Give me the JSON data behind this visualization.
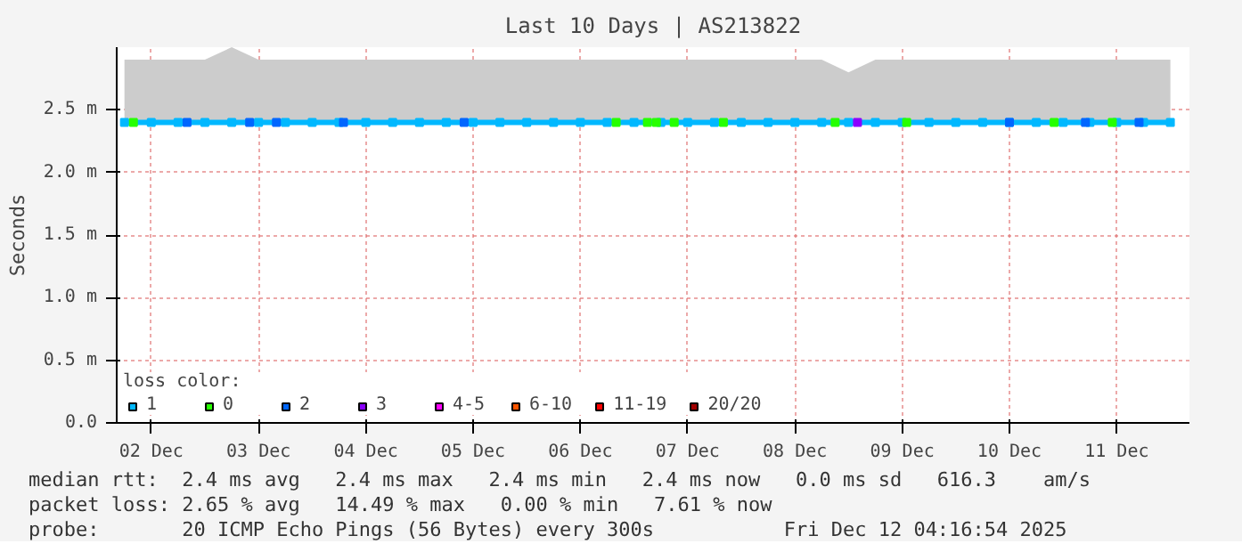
{
  "chart_data": {
    "type": "line",
    "title": "Last 10 Days | AS213822",
    "ylabel": "Seconds",
    "series": [
      {
        "name": "1",
        "color": "#00b8ff",
        "x": [
          "2025-12-02T06:00",
          "2025-12-02T12:00",
          "2025-12-02T18:00",
          "2025-12-03T00:00",
          "2025-12-03T06:00",
          "2025-12-03T12:00",
          "2025-12-03T18:00",
          "2025-12-04T00:00",
          "2025-12-04T06:00",
          "2025-12-04T12:00",
          "2025-12-04T18:00",
          "2025-12-05T00:00",
          "2025-12-05T06:00",
          "2025-12-05T12:00",
          "2025-12-05T18:00",
          "2025-12-06T00:00",
          "2025-12-06T06:00",
          "2025-12-06T12:00",
          "2025-12-06T18:00",
          "2025-12-07T00:00",
          "2025-12-07T06:00",
          "2025-12-07T12:00",
          "2025-12-07T18:00",
          "2025-12-08T00:00",
          "2025-12-08T06:00",
          "2025-12-08T12:00",
          "2025-12-08T18:00",
          "2025-12-09T00:00",
          "2025-12-09T06:00",
          "2025-12-09T12:00",
          "2025-12-09T18:00",
          "2025-12-10T00:00",
          "2025-12-10T06:00",
          "2025-12-10T12:00",
          "2025-12-10T18:00",
          "2025-12-11T00:00",
          "2025-12-11T06:00",
          "2025-12-11T12:00",
          "2025-12-11T18:00",
          "2025-12-12T00:00"
        ],
        "values": [
          2.4,
          2.4,
          2.4,
          2.4,
          2.4,
          2.4,
          2.4,
          2.4,
          2.4,
          2.4,
          2.4,
          2.4,
          2.4,
          2.4,
          2.4,
          2.4,
          2.4,
          2.4,
          2.4,
          2.4,
          2.4,
          2.4,
          2.4,
          2.4,
          2.4,
          2.4,
          2.4,
          2.4,
          2.4,
          2.4,
          2.4,
          2.4,
          2.4,
          2.4,
          2.4,
          2.4,
          2.4,
          2.4,
          2.4,
          2.4
        ],
        "lower": [
          2.4,
          2.4,
          2.4,
          2.4,
          2.4,
          2.4,
          2.4,
          2.4,
          2.4,
          2.4,
          2.4,
          2.4,
          2.4,
          2.4,
          2.4,
          2.4,
          2.4,
          2.4,
          2.4,
          2.4,
          2.4,
          2.4,
          2.4,
          2.4,
          2.4,
          2.4,
          2.4,
          2.4,
          2.4,
          2.4,
          2.4,
          2.4,
          2.4,
          2.4,
          2.4,
          2.4,
          2.4,
          2.4,
          2.4,
          2.4
        ],
        "upper": [
          2.9,
          2.9,
          2.9,
          2.9,
          3.0,
          2.9,
          2.9,
          2.9,
          2.9,
          2.9,
          2.9,
          2.9,
          2.9,
          2.9,
          2.9,
          2.9,
          2.9,
          2.9,
          2.9,
          2.9,
          2.9,
          2.9,
          2.9,
          2.9,
          2.9,
          2.9,
          2.9,
          2.8,
          2.9,
          2.9,
          2.9,
          2.9,
          2.9,
          2.9,
          2.9,
          2.9,
          2.9,
          2.9,
          2.9,
          2.9
        ]
      },
      {
        "name": "0",
        "type": "scatter",
        "color": "#26ff00",
        "x": [
          "2025-12-02T08:00",
          "2025-12-06T20:00",
          "2025-12-07T03:00",
          "2025-12-07T05:00",
          "2025-12-07T09:00",
          "2025-12-07T20:00",
          "2025-12-08T21:00",
          "2025-12-09T13:00",
          "2025-12-10T22:00",
          "2025-12-11T11:00"
        ],
        "values": [
          2.4,
          2.4,
          2.4,
          2.4,
          2.4,
          2.4,
          2.4,
          2.4,
          2.4,
          2.4
        ]
      },
      {
        "name": "2",
        "type": "scatter",
        "color": "#0066ff",
        "x": [
          "2025-12-02T20:00",
          "2025-12-03T10:00",
          "2025-12-03T16:00",
          "2025-12-04T07:00",
          "2025-12-05T10:00",
          "2025-12-10T12:00",
          "2025-12-11T05:00",
          "2025-12-11T17:00"
        ],
        "values": [
          2.4,
          2.4,
          2.4,
          2.4,
          2.4,
          2.4,
          2.4,
          2.4
        ]
      },
      {
        "name": "3",
        "type": "scatter",
        "color": "#8a00ff",
        "x": [
          "2025-12-09T02:00"
        ],
        "values": [
          2.4
        ]
      },
      {
        "name": "4-5",
        "type": "scatter",
        "color": "#ff00ff"
      },
      {
        "name": "6-10",
        "type": "scatter",
        "color": "#ff5500"
      },
      {
        "name": "11-19",
        "type": "scatter",
        "color": "#ff0000"
      },
      {
        "name": "20/20",
        "type": "scatter",
        "color": "#a10000"
      }
    ],
    "legend_title": "loss color:",
    "legend": "bottom",
    "marker": "square",
    "grid": true,
    "xlim": [
      "2025-12-02T04:16",
      "2025-12-12T04:16"
    ],
    "xticks": [
      {
        "value": "2025-12-02T12:00",
        "label": "02 Dec"
      },
      {
        "value": "2025-12-03T12:00",
        "label": "03 Dec"
      },
      {
        "value": "2025-12-04T12:00",
        "label": "04 Dec"
      },
      {
        "value": "2025-12-05T12:00",
        "label": "05 Dec"
      },
      {
        "value": "2025-12-06T12:00",
        "label": "06 Dec"
      },
      {
        "value": "2025-12-07T12:00",
        "label": "07 Dec"
      },
      {
        "value": "2025-12-08T12:00",
        "label": "08 Dec"
      },
      {
        "value": "2025-12-09T12:00",
        "label": "09 Dec"
      },
      {
        "value": "2025-12-10T12:00",
        "label": "10 Dec"
      },
      {
        "value": "2025-12-11T12:00",
        "label": "11 Dec"
      }
    ],
    "ylim": [
      0,
      3.0
    ],
    "yticks": [
      {
        "value": 0,
        "label": "0.0"
      },
      {
        "value": 0.5,
        "label": "0.5 m"
      },
      {
        "value": 1.0,
        "label": "1.0 m"
      },
      {
        "value": 1.5,
        "label": "1.5 m"
      },
      {
        "value": 2.0,
        "label": "2.0 m"
      },
      {
        "value": 2.5,
        "label": "2.5 m"
      }
    ],
    "annotations": [
      "median rtt:  2.4 ms avg   2.4 ms max   2.4 ms min   2.4 ms now   0.0 ms sd   616.3    am/s",
      "packet loss: 2.65 % avg   14.49 % max   0.00 % min   7.61 % now",
      "probe:       20 ICMP Echo Pings (56 Bytes) every 300s",
      "Fri Dec 12 04:16:54 2025"
    ]
  }
}
